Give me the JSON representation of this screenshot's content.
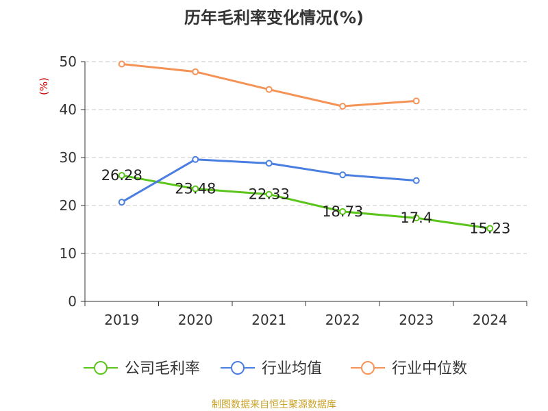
{
  "chart_data": {
    "type": "line",
    "title": "历年毛利率变化情况(%)",
    "ylabel": "(%)",
    "categories": [
      "2019",
      "2020",
      "2021",
      "2022",
      "2023",
      "2024"
    ],
    "ylim": [
      0,
      50
    ],
    "yticks": [
      0,
      10,
      20,
      30,
      40,
      50
    ],
    "grid": "horizontal-dashed",
    "legend": "bottom",
    "series": [
      {
        "name": "公司毛利率",
        "color": "#5cc51c",
        "values": [
          26.28,
          23.48,
          22.33,
          18.73,
          17.4,
          15.23
        ],
        "labels": [
          "26.28",
          "23.48",
          "22.33",
          "18.73",
          "17.4",
          "15.23"
        ]
      },
      {
        "name": "行业均值",
        "color": "#4a7ee0",
        "values": [
          20.7,
          29.6,
          28.8,
          26.4,
          25.2,
          null
        ]
      },
      {
        "name": "行业中位数",
        "color": "#f59357",
        "values": [
          49.5,
          47.9,
          44.2,
          40.7,
          41.8,
          null
        ]
      }
    ]
  },
  "source": "制图数据来自恒生聚源数据库"
}
